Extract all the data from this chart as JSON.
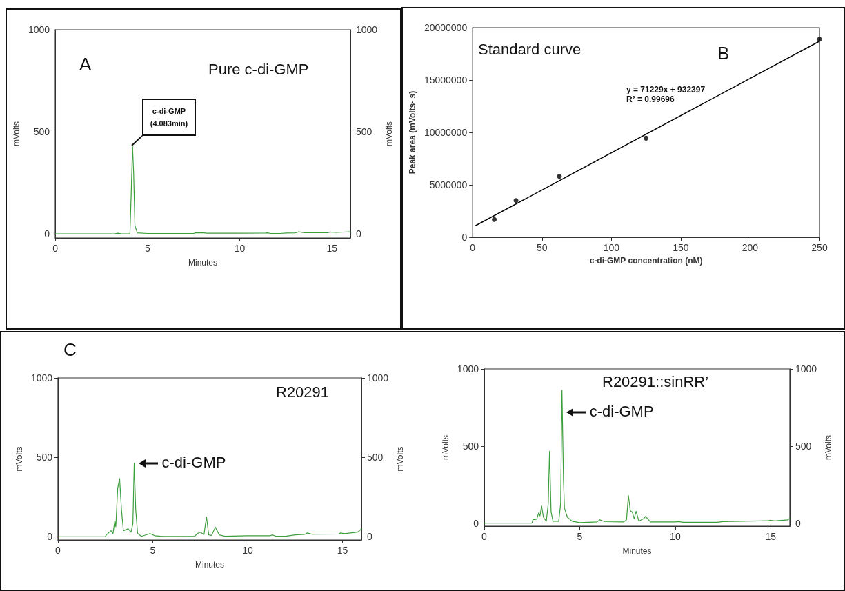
{
  "chart_data": [
    {
      "type": "line",
      "title": "Pure c-di-GMP",
      "xlabel": "Minutes",
      "ylabel": "mVolts",
      "y2label": "mVolts",
      "annotations": [
        "A",
        "c-di-GMP\n(4.083min)"
      ],
      "xlim": [
        0,
        16
      ],
      "xticks": [
        0,
        5,
        10,
        15
      ],
      "ylim": [
        -20,
        1000
      ],
      "yticks": [
        0,
        500,
        1000
      ],
      "y2lim": [
        -20,
        1000
      ],
      "y2ticks": [
        0,
        500,
        1000
      ],
      "series": [
        {
          "color": "#3c9e3c",
          "x": [
            0,
            3.2,
            3.4,
            3.6,
            4.05,
            4.12,
            4.19,
            4.25,
            4.32,
            4.45,
            5,
            7.5,
            7.6,
            8,
            8.2,
            10,
            11.4,
            11.5,
            11.7,
            12.2,
            12.5,
            13,
            13.2,
            13.5,
            14.8,
            14.9,
            15.2,
            16
          ],
          "values": [
            0,
            0,
            3,
            0,
            0,
            200,
            430,
            300,
            40,
            5,
            2,
            2,
            5,
            6,
            3,
            3,
            4,
            5,
            2,
            2,
            4,
            5,
            10,
            6,
            6,
            9,
            7,
            10
          ]
        }
      ]
    },
    {
      "type": "scatter",
      "title": "Standard curve",
      "xlabel": "c-di-GMP concentration (nM)",
      "ylabel": "Peak area (mVolts· s)",
      "annotations": [
        "B",
        "y = 71229x + 932397",
        "R² = 0.99696"
      ],
      "xlim": [
        0,
        250
      ],
      "xticks": [
        0,
        50,
        100,
        150,
        200,
        250
      ],
      "ylim": [
        0,
        20000000
      ],
      "yticks": [
        0,
        5000000,
        10000000,
        15000000,
        20000000
      ],
      "series": [
        {
          "marker": "circle",
          "color": "#000000",
          "x": [
            15.6,
            31.25,
            62.5,
            125,
            250
          ],
          "values": [
            1700000,
            3500000,
            5800000,
            9450000,
            18900000
          ]
        },
        {
          "type": "line",
          "color": "#000000",
          "x": [
            2,
            250
          ],
          "values": [
            1100000,
            18700000
          ]
        }
      ]
    },
    {
      "type": "line",
      "title": "R20291",
      "xlabel": "Minutes",
      "ylabel": "mVolts",
      "y2label": "mVolts",
      "annotations": [
        "C",
        {
          "text": "c-di-GMP",
          "x": 4.02,
          "y": 460
        }
      ],
      "xlim": [
        0,
        16
      ],
      "xticks": [
        0,
        5,
        10,
        15
      ],
      "ylim": [
        -20,
        1000
      ],
      "yticks": [
        0,
        500,
        1000
      ],
      "y2lim": [
        -20,
        1000
      ],
      "y2ticks": [
        0,
        500,
        1000
      ],
      "series": [
        {
          "color": "#3c9e3c",
          "x": [
            0,
            2.5,
            2.55,
            2.8,
            2.9,
            3.0,
            3.05,
            3.15,
            3.25,
            3.35,
            3.45,
            3.7,
            3.85,
            3.95,
            4.02,
            4.1,
            4.2,
            4.4,
            4.85,
            5.1,
            5.5,
            7.2,
            7.35,
            7.5,
            7.7,
            7.83,
            7.95,
            8.1,
            8.3,
            8.5,
            8.8,
            10,
            11.2,
            11.3,
            11.5,
            12,
            12.5,
            13,
            13.15,
            13.4,
            14.8,
            14.9,
            15.1,
            15.8,
            16
          ],
          "values": [
            0,
            0,
            12,
            38,
            20,
            99,
            64,
            306,
            367,
            168,
            38,
            50,
            29,
            81,
            462,
            168,
            21,
            3,
            20,
            7,
            2,
            3,
            20,
            29,
            15,
            125,
            12,
            9,
            60,
            12,
            3,
            7,
            7,
            12,
            3,
            3,
            12,
            15,
            24,
            16,
            17,
            24,
            20,
            29,
            50
          ]
        }
      ]
    },
    {
      "type": "line",
      "title": "R20291::sinRR’",
      "xlabel": "Minutes",
      "ylabel": "mVolts",
      "y2label": "mVolts",
      "annotations": [
        {
          "text": "c-di-GMP",
          "x": 4.07,
          "y": 720
        }
      ],
      "xlim": [
        0,
        16
      ],
      "xticks": [
        0,
        5,
        10,
        15
      ],
      "ylim": [
        -20,
        1000
      ],
      "yticks": [
        0,
        500,
        1000
      ],
      "y2lim": [
        -20,
        1000
      ],
      "y2ticks": [
        0,
        500,
        1000
      ],
      "series": [
        {
          "color": "#3c9e3c",
          "x": [
            0,
            2.5,
            2.55,
            2.75,
            2.85,
            2.92,
            3.0,
            3.1,
            3.25,
            3.35,
            3.42,
            3.5,
            3.6,
            3.9,
            4.0,
            4.07,
            4.15,
            4.2,
            4.35,
            4.6,
            5,
            5.9,
            6.05,
            6.3,
            7.3,
            7.45,
            7.55,
            7.65,
            7.75,
            7.85,
            7.95,
            8.1,
            8.35,
            8.45,
            8.7,
            10,
            10.2,
            10.4,
            12.2,
            12.5,
            14.9,
            14.95,
            15.2,
            15.9,
            16
          ],
          "values": [
            0,
            0,
            22,
            25,
            67,
            47,
            112,
            38,
            12,
            124,
            466,
            72,
            12,
            12,
            124,
            862,
            279,
            98,
            38,
            12,
            3,
            7,
            21,
            9,
            7,
            21,
            179,
            79,
            72,
            29,
            76,
            12,
            29,
            43,
            7,
            7,
            10,
            5,
            5,
            10,
            15,
            19,
            14,
            21,
            33
          ]
        }
      ]
    }
  ]
}
